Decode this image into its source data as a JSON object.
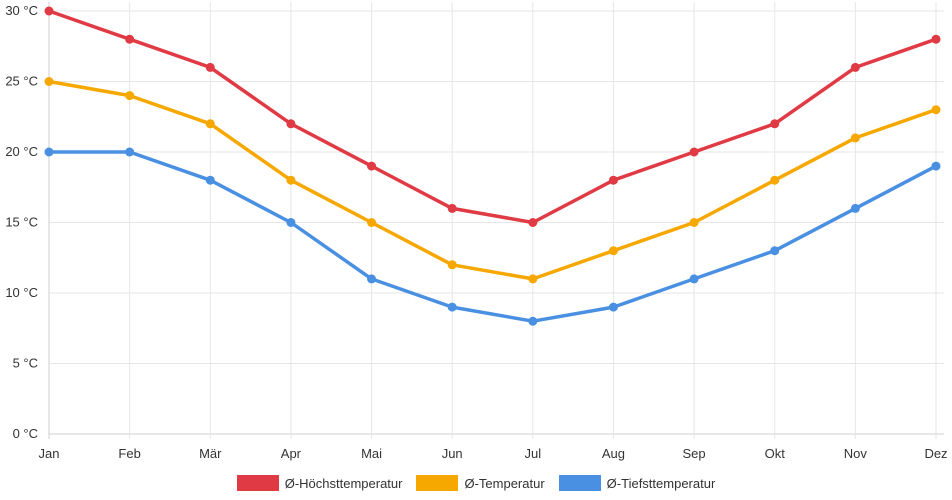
{
  "chart_data": {
    "type": "line",
    "categories": [
      "Jan",
      "Feb",
      "Mär",
      "Apr",
      "Mai",
      "Jun",
      "Jul",
      "Aug",
      "Sep",
      "Okt",
      "Nov",
      "Dez"
    ],
    "series": [
      {
        "name": "Ø-Höchsttemperatur",
        "color": "#e03a45",
        "values": [
          30,
          28,
          26,
          22,
          19,
          16,
          15,
          18,
          20,
          22,
          26,
          28
        ]
      },
      {
        "name": "Ø-Temperatur",
        "color": "#f7a800",
        "values": [
          25,
          24,
          22,
          18,
          15,
          12,
          11,
          13,
          15,
          18,
          21,
          23
        ]
      },
      {
        "name": "Ø-Tiefsttemperatur",
        "color": "#4a90e2",
        "values": [
          20,
          20,
          18,
          15,
          11,
          9,
          8,
          9,
          11,
          13,
          16,
          19
        ]
      }
    ],
    "y_ticks": [
      "0 °C",
      "5 °C",
      "10 °C",
      "15 °C",
      "20 °C",
      "25 °C",
      "30 °C"
    ],
    "ylim": [
      0,
      30
    ],
    "y_step": 5,
    "grid": true,
    "legend_position": "bottom-center",
    "title": "",
    "xlabel": "",
    "ylabel": ""
  }
}
